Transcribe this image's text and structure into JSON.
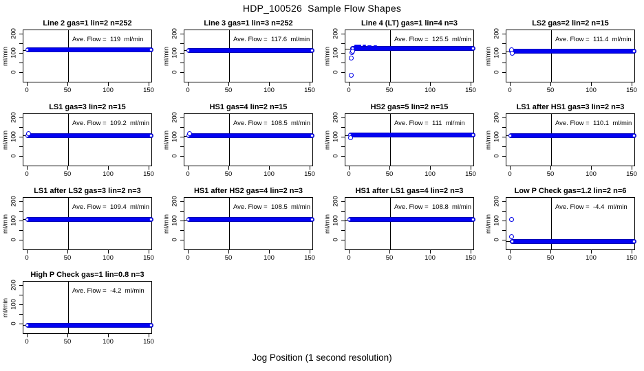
{
  "figure": {
    "title": "HDP_100526  Sample Flow Shapes",
    "xlabel": "Jog Position (1 second resolution)"
  },
  "style": {
    "marker_color": "#0000ff",
    "axis_color": "#000000",
    "background": "#ffffff"
  },
  "chart_data": {
    "type": "scatter",
    "layout": "4-column grid, 13 panels",
    "title": "HDP_100526  Sample Flow Shapes",
    "xlabel": "Jog Position (1 second resolution)",
    "shared_axes": {
      "ylabel": "ml/min",
      "x_ticks": [
        0,
        50,
        100,
        150
      ],
      "x_tick_labels": [
        "0",
        "50",
        "100",
        "150"
      ],
      "y_ticks": [
        0,
        50,
        100,
        150,
        200
      ],
      "y_labeled_ticks": [
        0,
        100,
        200
      ],
      "y_tick_labels": [
        "0",
        "100",
        "200"
      ],
      "xlim": [
        -6,
        157
      ],
      "ylim": [
        -53,
        222
      ],
      "vline_x": 50,
      "marker": "open-circle",
      "grid": false,
      "legend": "none"
    },
    "panels": [
      {
        "title": "Line 2 gas=1 lin=2 n=252",
        "annotation": "Ave. Flow =  119  ml/min",
        "ave_flow": 119,
        "band": {
          "x_start": 0,
          "x_end": 152,
          "y": 119
        },
        "outliers": [],
        "dashes": []
      },
      {
        "title": "Line 3 gas=1 lin=3 n=252",
        "annotation": "Ave. Flow =  117.6  ml/min",
        "ave_flow": 117.6,
        "band": {
          "x_start": 0,
          "x_end": 152,
          "y": 117.6
        },
        "outliers": [],
        "dashes": []
      },
      {
        "title": "Line 4 (LT) gas=1 lin=4 n=3",
        "annotation": "Ave. Flow =  125.5  ml/min",
        "ave_flow": 125.5,
        "band": {
          "x_start": 4,
          "x_end": 152,
          "y": 125.5
        },
        "outliers": [
          [
            2,
            -12
          ],
          [
            2.5,
            78
          ],
          [
            3,
            105
          ],
          [
            4,
            114
          ]
        ],
        "dashes": [
          [
            6,
            14,
            142
          ],
          [
            16,
            20,
            144
          ],
          [
            22,
            27,
            141
          ],
          [
            30,
            34,
            139
          ]
        ]
      },
      {
        "title": "LS2 gas=2 lin=2 n=15",
        "annotation": "Ave. Flow =  111.4  ml/min",
        "ave_flow": 111.4,
        "band": {
          "x_start": 1,
          "x_end": 152,
          "y": 111.4
        },
        "outliers": [
          [
            1,
            120
          ],
          [
            2,
            102
          ]
        ],
        "dashes": []
      },
      {
        "title": "LS1 gas=3 lin=2 n=15",
        "annotation": "Ave. Flow =  109.2  ml/min",
        "ave_flow": 109.2,
        "band": {
          "x_start": 0,
          "x_end": 152,
          "y": 109.2
        },
        "outliers": [
          [
            1,
            119
          ]
        ],
        "dashes": []
      },
      {
        "title": "HS1 gas=4 lin=2 n=15",
        "annotation": "Ave. Flow =  108.5  ml/min",
        "ave_flow": 108.5,
        "band": {
          "x_start": 0,
          "x_end": 152,
          "y": 108.5
        },
        "outliers": [
          [
            1,
            120
          ]
        ],
        "dashes": []
      },
      {
        "title": "HS2 gas=5 lin=2 n=15",
        "annotation": "Ave. Flow =  111  ml/min",
        "ave_flow": 111,
        "band": {
          "x_start": 1,
          "x_end": 152,
          "y": 111
        },
        "outliers": [
          [
            1.5,
            100
          ]
        ],
        "dashes": []
      },
      {
        "title": "LS1 after HS1 gas=3 lin=2 n=3",
        "annotation": "Ave. Flow =  110.1  ml/min",
        "ave_flow": 110.1,
        "band": {
          "x_start": 0,
          "x_end": 152,
          "y": 110.1
        },
        "outliers": [],
        "dashes": []
      },
      {
        "title": "LS1 after LS2 gas=3 lin=2 n=3",
        "annotation": "Ave. Flow =  109.4  ml/min",
        "ave_flow": 109.4,
        "band": {
          "x_start": 0,
          "x_end": 152,
          "y": 109.4
        },
        "outliers": [],
        "dashes": []
      },
      {
        "title": "HS1 after HS2 gas=4 lin=2 n=3",
        "annotation": "Ave. Flow =  108.5  ml/min",
        "ave_flow": 108.5,
        "band": {
          "x_start": 0,
          "x_end": 152,
          "y": 108.5
        },
        "outliers": [],
        "dashes": []
      },
      {
        "title": "HS1 after LS1 gas=4 lin=2 n=3",
        "annotation": "Ave. Flow =  108.8  ml/min",
        "ave_flow": 108.8,
        "band": {
          "x_start": 0,
          "x_end": 152,
          "y": 108.8
        },
        "outliers": [],
        "dashes": []
      },
      {
        "title": "Low P Check gas=1.2 lin=2 n=6",
        "annotation": "Ave. Flow =  -4.4  ml/min",
        "ave_flow": -4.4,
        "band": {
          "x_start": 2.5,
          "x_end": 152,
          "y": -4.4
        },
        "outliers": [
          [
            1,
            110
          ],
          [
            1.5,
            18
          ]
        ],
        "dashes": []
      },
      {
        "title": "High P Check gas=1 lin=0.8 n=3",
        "annotation": "Ave. Flow =  -4.2  ml/min",
        "ave_flow": -4.2,
        "band": {
          "x_start": 0,
          "x_end": 152,
          "y": -4.2
        },
        "outliers": [],
        "dashes": []
      }
    ]
  }
}
